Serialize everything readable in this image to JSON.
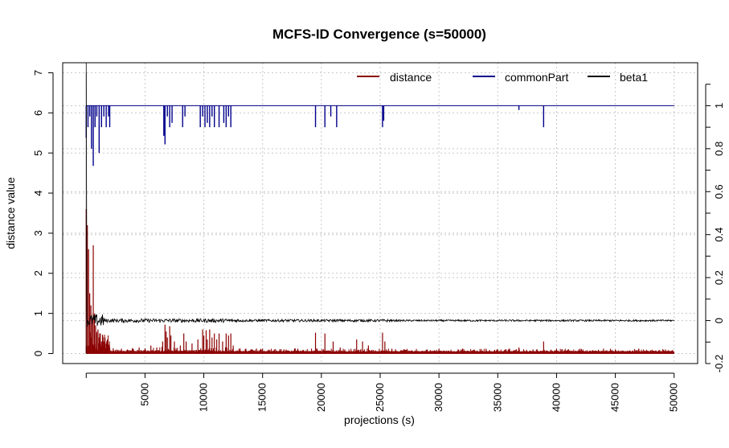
{
  "chart_data": {
    "type": "line",
    "title": "MCFS-ID Convergence (s=50000)",
    "xlabel": "projections (s)",
    "ylabel": "distance value",
    "ylabel_right": "",
    "xlim": [
      -2000,
      52000
    ],
    "ylim": [
      -0.25,
      7.25
    ],
    "ylim_right": [
      -0.2,
      1.2
    ],
    "x_ticks": [
      "5000",
      "10000",
      "15000",
      "20000",
      "25000",
      "30000",
      "35000",
      "40000",
      "45000",
      "50000"
    ],
    "y_ticks": [
      "0",
      "1",
      "2",
      "3",
      "4",
      "5",
      "6",
      "7"
    ],
    "y_right_ticks": [
      "-0.2",
      "0",
      "0.2",
      "0.4",
      "0.6",
      "0.8",
      "1"
    ],
    "grid": true,
    "legend_placement": "top-right",
    "colors": {
      "distance": "#8B0000",
      "commonPart": "#00008B",
      "beta1": "#000000",
      "grid": "#c8c8c8"
    },
    "series": [
      {
        "name": "distance",
        "axis": "left",
        "baseline": 0.05,
        "spikes": [
          [
            0,
            3.6
          ],
          [
            100,
            3.2
          ],
          [
            200,
            2.6
          ],
          [
            300,
            1.5
          ],
          [
            400,
            1.2
          ],
          [
            500,
            0.8
          ],
          [
            600,
            2.7
          ],
          [
            700,
            1.0
          ],
          [
            800,
            0.7
          ],
          [
            900,
            0.5
          ],
          [
            1000,
            0.6
          ],
          [
            1100,
            0.4
          ],
          [
            1200,
            0.5
          ],
          [
            1300,
            0.3
          ],
          [
            1400,
            0.45
          ],
          [
            1500,
            0.3
          ],
          [
            1600,
            0.4
          ],
          [
            1700,
            0.25
          ],
          [
            1800,
            0.35
          ],
          [
            1900,
            0.2
          ],
          [
            2000,
            0.15
          ],
          [
            2300,
            0.12
          ],
          [
            2600,
            0.1
          ],
          [
            3000,
            0.12
          ],
          [
            3500,
            0.1
          ],
          [
            4000,
            0.12
          ],
          [
            4500,
            0.15
          ],
          [
            5000,
            0.13
          ],
          [
            5500,
            0.2
          ],
          [
            6000,
            0.15
          ],
          [
            6500,
            0.3
          ],
          [
            6700,
            0.72
          ],
          [
            6800,
            0.55
          ],
          [
            6900,
            0.4
          ],
          [
            7100,
            0.68
          ],
          [
            7200,
            0.45
          ],
          [
            7500,
            0.3
          ],
          [
            8000,
            0.2
          ],
          [
            8300,
            0.5
          ],
          [
            8500,
            0.3
          ],
          [
            9000,
            0.25
          ],
          [
            9500,
            0.35
          ],
          [
            9900,
            0.6
          ],
          [
            10000,
            0.45
          ],
          [
            10200,
            0.58
          ],
          [
            10300,
            0.35
          ],
          [
            10500,
            0.6
          ],
          [
            10700,
            0.4
          ],
          [
            10900,
            0.5
          ],
          [
            11100,
            0.35
          ],
          [
            11300,
            0.5
          ],
          [
            11600,
            0.3
          ],
          [
            11900,
            0.5
          ],
          [
            12100,
            0.45
          ],
          [
            12300,
            0.5
          ],
          [
            12500,
            0.2
          ],
          [
            13000,
            0.12
          ],
          [
            14000,
            0.1
          ],
          [
            15000,
            0.12
          ],
          [
            16000,
            0.1
          ],
          [
            17000,
            0.1
          ],
          [
            18000,
            0.12
          ],
          [
            19500,
            0.52
          ],
          [
            20300,
            0.5
          ],
          [
            21000,
            0.3
          ],
          [
            21600,
            0.15
          ],
          [
            22000,
            0.1
          ],
          [
            23000,
            0.35
          ],
          [
            23500,
            0.3
          ],
          [
            24000,
            0.2
          ],
          [
            25200,
            0.52
          ],
          [
            25400,
            0.3
          ],
          [
            26000,
            0.12
          ],
          [
            27000,
            0.1
          ],
          [
            28000,
            0.06
          ],
          [
            29000,
            0.1
          ],
          [
            30000,
            0.12
          ],
          [
            32000,
            0.12
          ],
          [
            33000,
            0.1
          ],
          [
            34000,
            0.12
          ],
          [
            35000,
            0.1
          ],
          [
            36000,
            0.12
          ],
          [
            36800,
            0.15
          ],
          [
            38000,
            0.1
          ],
          [
            38900,
            0.3
          ],
          [
            40000,
            0.12
          ],
          [
            42000,
            0.12
          ],
          [
            44000,
            0.12
          ],
          [
            45000,
            0.1
          ],
          [
            47000,
            0.12
          ],
          [
            48000,
            0.08
          ],
          [
            49500,
            0.08
          ]
        ],
        "noise_ranges": [
          [
            0,
            2000,
            0.6
          ],
          [
            2000,
            12500,
            0.12
          ],
          [
            12500,
            27000,
            0.08
          ],
          [
            27000,
            50000,
            0.07
          ]
        ]
      },
      {
        "name": "commonPart",
        "axis": "right",
        "baseline": 1.0,
        "drops": [
          [
            0,
            0.85
          ],
          [
            150,
            0.9
          ],
          [
            300,
            0.95
          ],
          [
            450,
            0.8
          ],
          [
            600,
            0.72
          ],
          [
            750,
            0.9
          ],
          [
            900,
            0.95
          ],
          [
            1100,
            0.78
          ],
          [
            1300,
            0.9
          ],
          [
            1500,
            0.95
          ],
          [
            1700,
            0.9
          ],
          [
            1900,
            0.95
          ],
          [
            2000,
            0.9
          ],
          [
            6600,
            0.86
          ],
          [
            6700,
            0.82
          ],
          [
            6900,
            0.95
          ],
          [
            7100,
            0.9
          ],
          [
            7300,
            0.92
          ],
          [
            8200,
            0.9
          ],
          [
            8400,
            0.95
          ],
          [
            9700,
            0.9
          ],
          [
            9900,
            0.95
          ],
          [
            10100,
            0.9
          ],
          [
            10300,
            0.92
          ],
          [
            10500,
            0.9
          ],
          [
            10700,
            0.95
          ],
          [
            10900,
            0.9
          ],
          [
            11300,
            0.9
          ],
          [
            11700,
            0.92
          ],
          [
            11900,
            0.9
          ],
          [
            12100,
            0.95
          ],
          [
            12300,
            0.9
          ],
          [
            19500,
            0.9
          ],
          [
            20300,
            0.9
          ],
          [
            20800,
            0.95
          ],
          [
            21300,
            0.9
          ],
          [
            25200,
            0.9
          ],
          [
            25300,
            0.93
          ],
          [
            36800,
            0.98
          ],
          [
            38900,
            0.9
          ]
        ]
      },
      {
        "name": "beta1",
        "axis": "right",
        "baseline": 0.0,
        "initial": 1.2,
        "noise_ranges": [
          [
            0,
            1500,
            0.03
          ],
          [
            1500,
            13000,
            0.009
          ],
          [
            13000,
            26000,
            0.006
          ],
          [
            26000,
            50000,
            0.004
          ]
        ]
      }
    ]
  }
}
